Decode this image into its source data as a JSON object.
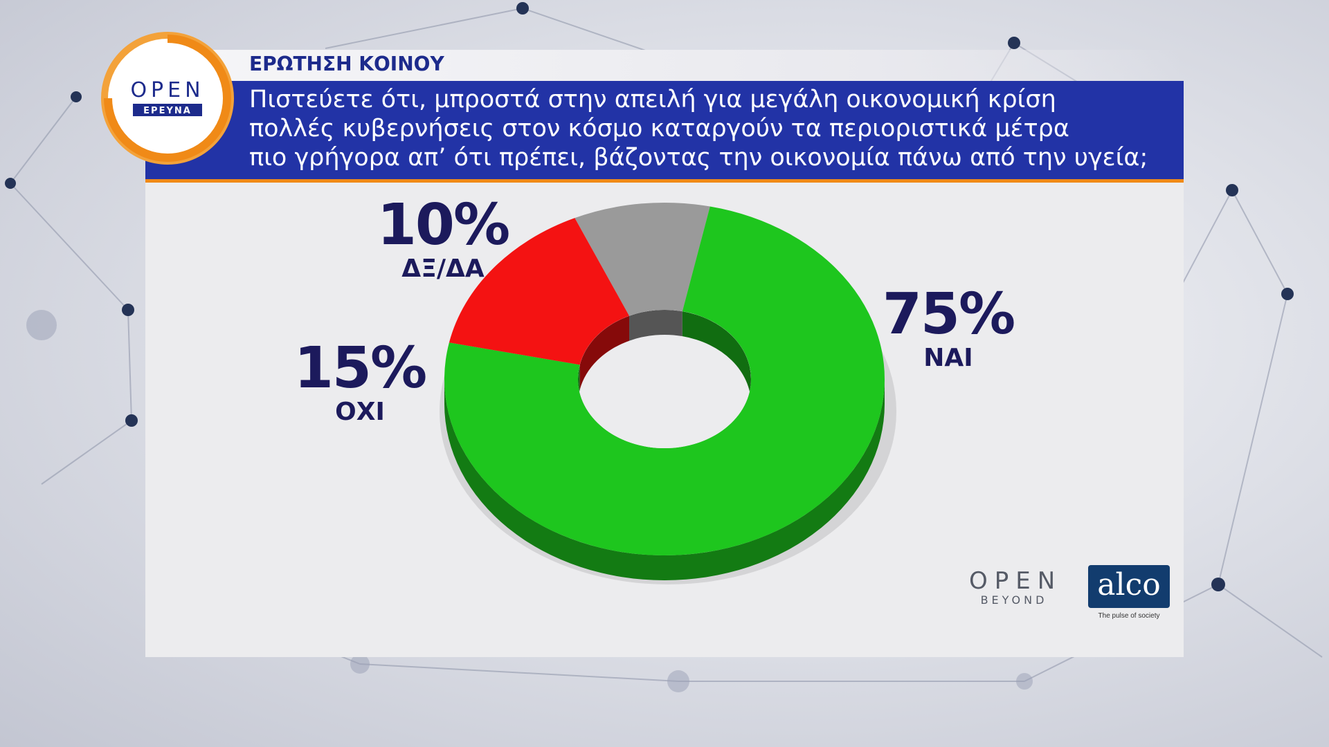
{
  "header": {
    "label": "ΕΡΩΤΗΣΗ ΚΟΙΝΟΥ",
    "question_lines": [
      "Πιστεύετε ότι, μπροστά στην απειλή για μεγάλη οικονομική κρίση",
      "πολλές κυβερνήσεις στον κόσμο καταργούν τα περιοριστικά μέτρα",
      "πιο γρήγορα απ’ ότι πρέπει, βάζοντας την οικονομία πάνω από την υγεία;"
    ]
  },
  "logo": {
    "open_text": "OPEN",
    "open_sub": "ΕΡΕΥΝΑ",
    "accent_color": "#f08a17",
    "badge_color": "#1d2b8c"
  },
  "chart_data": {
    "type": "pie",
    "style": "3d-donut",
    "categories": [
      "ΝΑΙ",
      "ΟΧΙ",
      "ΔΞ/ΔΑ"
    ],
    "values": [
      75,
      15,
      10
    ],
    "value_labels": [
      "75%",
      "15%",
      "10%"
    ],
    "colors": [
      "#1ec61e",
      "#f41212",
      "#9a9a9a"
    ]
  },
  "footer": {
    "open_text": "OPEN",
    "open_sub": "BEYOND",
    "alco_text": "alco",
    "alco_tagline": "The pulse of society"
  }
}
